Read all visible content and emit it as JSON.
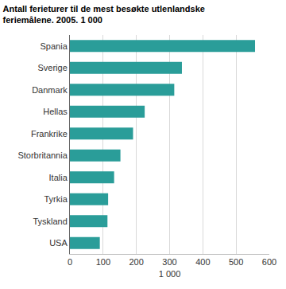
{
  "chart_data": {
    "type": "bar",
    "orientation": "horizontal",
    "title": "Antall ferieturer til de mest besøkte utlenlandske\nferiemålene. 2005. 1 000",
    "x_label": "1 000",
    "categories": [
      "Spania",
      "Sverige",
      "Danmark",
      "Hellas",
      "Frankrike",
      "Storbritannia",
      "Italia",
      "Tyrkia",
      "Tyskland",
      "USA"
    ],
    "values": [
      557,
      337,
      314,
      225,
      190,
      152,
      133,
      115,
      113,
      90
    ],
    "color": "#2a9d99",
    "xlim": [
      0,
      600
    ],
    "xticks": [
      0,
      100,
      200,
      300,
      400,
      500,
      600
    ],
    "grid": true
  }
}
